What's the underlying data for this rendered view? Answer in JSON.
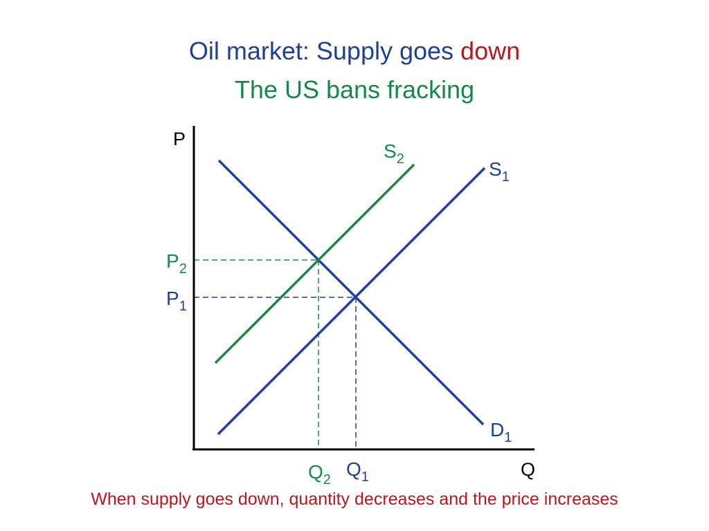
{
  "title": {
    "line1_prefix": "Oil market: Supply goes ",
    "line1_highlight": "down",
    "line2": "The US bans fracking"
  },
  "caption": "When supply goes down, quantity decreases and the price increases",
  "colors": {
    "title": "#1f3f9a",
    "highlight": "#c0141c",
    "subtitle": "#138a48",
    "caption": "#c0141c",
    "axis": "#000000",
    "demand": "#1f3f9a",
    "supply_original": "#1f3f9a",
    "supply_new": "#138a48"
  },
  "graph": {
    "axis_labels": {
      "y": "P",
      "x": "Q"
    },
    "curves": [
      {
        "id": "demand",
        "label_main": "D",
        "label_sub": "1",
        "color": "#1f3f9a"
      },
      {
        "id": "supply1",
        "label_main": "S",
        "label_sub": "1",
        "color": "#1f3f9a"
      },
      {
        "id": "supply2",
        "label_main": "S",
        "label_sub": "2",
        "color": "#138a48"
      }
    ],
    "equilibria": [
      {
        "id": "eq1",
        "price_main": "P",
        "price_sub": "1",
        "quantity_main": "Q",
        "quantity_sub": "1",
        "color": "#1f3f9a"
      },
      {
        "id": "eq2",
        "price_main": "P",
        "price_sub": "2",
        "quantity_main": "Q",
        "quantity_sub": "2",
        "color": "#138a48"
      }
    ]
  }
}
